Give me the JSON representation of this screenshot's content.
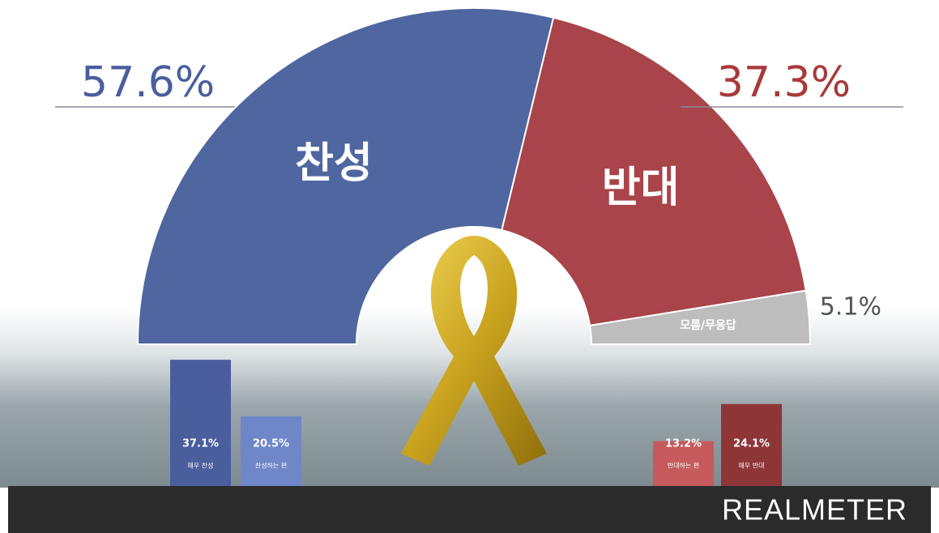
{
  "chart_data": [
    {
      "type": "half-donut",
      "categories": [
        "찬성",
        "반대",
        "모름/무응답"
      ],
      "values": [
        57.6,
        37.3,
        5.1
      ],
      "value_labels": [
        "57.6%",
        "37.3%",
        "5.1%"
      ],
      "colors": [
        "#4f66a0",
        "#a8444a",
        "#bdbdbd"
      ],
      "label_colors": [
        "#4a5e9e",
        "#a83a3a",
        "#555555"
      ]
    },
    {
      "type": "bar",
      "categories": [
        "매우 찬성",
        "찬성하는 편",
        "반대하는 편",
        "매우 반대"
      ],
      "values": [
        37.1,
        20.5,
        13.2,
        24.1
      ],
      "value_labels": [
        "37.1%",
        "20.5%",
        "13.2%",
        "24.1%"
      ],
      "colors": [
        "#4a5e9e",
        "#6f86c8",
        "#c65a5c",
        "#8e3538"
      ]
    }
  ],
  "brand": "REALMETER"
}
